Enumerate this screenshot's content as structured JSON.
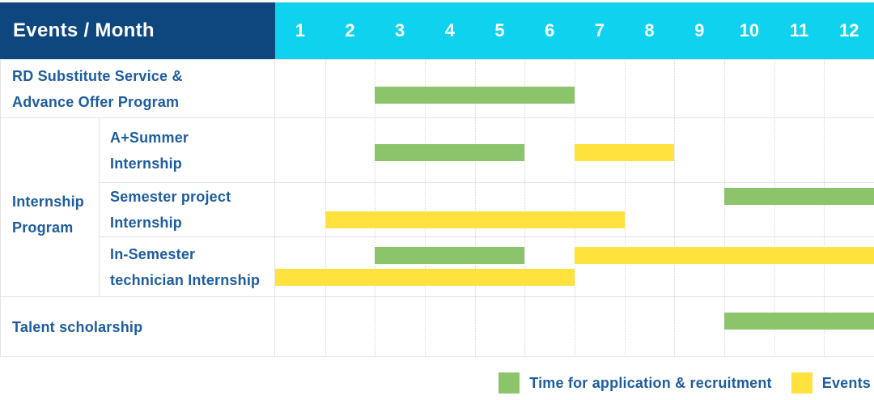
{
  "table": {
    "header_title": "Events / Month",
    "months": [
      "1",
      "2",
      "3",
      "4",
      "5",
      "6",
      "7",
      "8",
      "9",
      "10",
      "11",
      "12"
    ],
    "group": {
      "label_lines": [
        "Internship",
        "Program"
      ]
    },
    "rows": [
      {
        "label_lines": [
          "RD Substitute Service &",
          "Advance Offer Program"
        ],
        "grouped": false,
        "lines": [
          [
            {
              "kind": "application",
              "start": 3,
              "end": 6
            }
          ]
        ]
      },
      {
        "label_lines": [
          "A+Summer",
          "Internship"
        ],
        "grouped": true,
        "lines": [
          [
            {
              "kind": "application",
              "start": 3,
              "end": 5
            },
            {
              "kind": "events",
              "start": 7,
              "end": 8
            }
          ]
        ]
      },
      {
        "label_lines": [
          "Semester project",
          "Internship"
        ],
        "grouped": true,
        "lines": [
          [
            {
              "kind": "application",
              "start": 10,
              "end": 12
            }
          ],
          [
            {
              "kind": "events",
              "start": 2,
              "end": 7
            }
          ]
        ]
      },
      {
        "label_lines": [
          "In-Semester",
          "technician Internship"
        ],
        "grouped": true,
        "lines": [
          [
            {
              "kind": "application",
              "start": 3,
              "end": 5
            },
            {
              "kind": "events",
              "start": 7,
              "end": 12
            }
          ],
          [
            {
              "kind": "events",
              "start": 1,
              "end": 6
            }
          ]
        ]
      },
      {
        "label_lines": [
          "Talent scholarship"
        ],
        "grouped": false,
        "lines": [
          [
            {
              "kind": "application",
              "start": 10,
              "end": 12
            }
          ]
        ]
      }
    ]
  },
  "legend": {
    "items": [
      {
        "kind": "application",
        "label": "Time for application & recruitment"
      },
      {
        "kind": "events",
        "label": "Events"
      }
    ]
  },
  "colors": {
    "header_bg": "#0d477d",
    "months_bg": "#0fd2ee",
    "application_bar": "#8bc46a",
    "events_bar": "#ffe23d",
    "label_text": "#1c5c9f",
    "grid_line": "#e4e4e4",
    "month_gridline": "#d8d8d8"
  },
  "chart_data": {
    "type": "gantt",
    "unit": "month",
    "x_range": [
      1,
      12
    ],
    "x_ticks": [
      "1",
      "2",
      "3",
      "4",
      "5",
      "6",
      "7",
      "8",
      "9",
      "10",
      "11",
      "12"
    ],
    "corner_header": "Events / Month",
    "legend": [
      "Time for application & recruitment",
      "Events"
    ],
    "legend_position": "bottom-right",
    "grid": "dotted-vertical-month-lines",
    "rows": [
      {
        "label": "RD Substitute Service & Advance Offer Program",
        "group": null,
        "bars": [
          {
            "series": "Time for application & recruitment",
            "start_month": 3,
            "end_month": 6
          }
        ]
      },
      {
        "label": "A+Summer Internship",
        "group": "Internship Program",
        "bars": [
          {
            "series": "Time for application & recruitment",
            "start_month": 3,
            "end_month": 5
          },
          {
            "series": "Events",
            "start_month": 7,
            "end_month": 8
          }
        ]
      },
      {
        "label": "Semester project Internship",
        "group": "Internship Program",
        "bars": [
          {
            "series": "Time for application & recruitment",
            "start_month": 10,
            "end_month": 12
          },
          {
            "series": "Events",
            "start_month": 2,
            "end_month": 7
          }
        ]
      },
      {
        "label": "In-Semester technician Internship",
        "group": "Internship Program",
        "bars": [
          {
            "series": "Time for application & recruitment",
            "start_month": 3,
            "end_month": 5
          },
          {
            "series": "Events",
            "start_month": 7,
            "end_month": 12
          },
          {
            "series": "Events",
            "start_month": 1,
            "end_month": 6
          }
        ]
      },
      {
        "label": "Talent scholarship",
        "group": null,
        "bars": [
          {
            "series": "Time for application & recruitment",
            "start_month": 10,
            "end_month": 12
          }
        ]
      }
    ]
  }
}
